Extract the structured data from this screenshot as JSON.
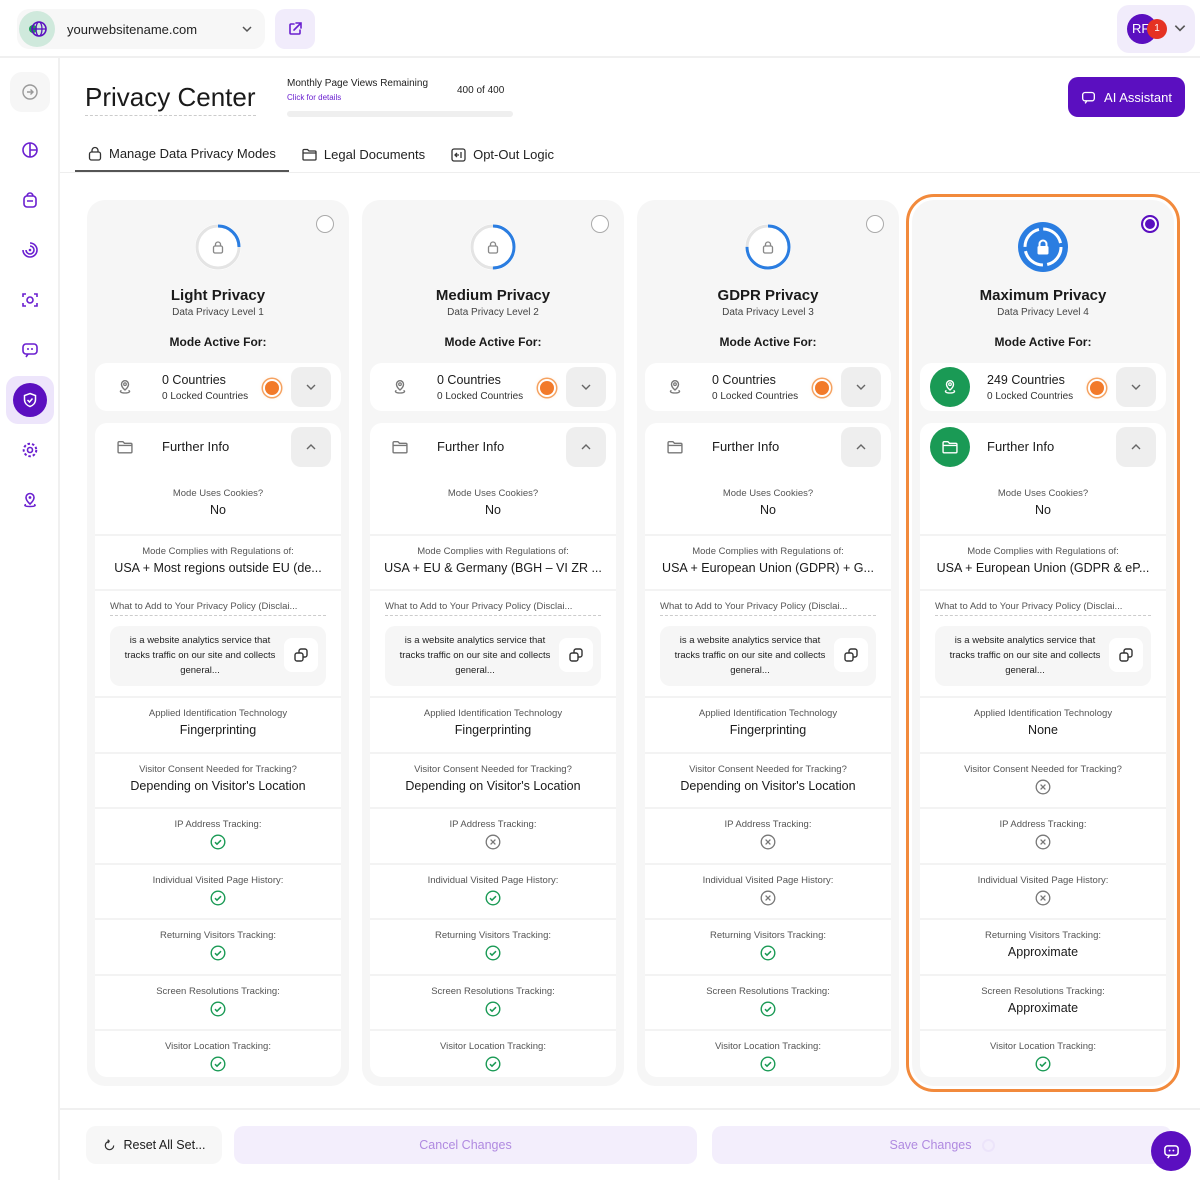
{
  "topbar": {
    "site": "yourwebsitename.com",
    "user_initials": "RF",
    "notifications": "1"
  },
  "header": {
    "title": "Privacy Center",
    "page_views_label": "Monthly Page Views Remaining",
    "page_views_link": "Click for details",
    "page_views_value": "400 of 400",
    "page_views_used_fraction": 0,
    "ai_button": "AI Assistant"
  },
  "tabs": [
    {
      "label": "Manage Data Privacy Modes",
      "icon": "lock-icon",
      "active": true
    },
    {
      "label": "Legal Documents",
      "icon": "folder-icon"
    },
    {
      "label": "Opt-Out Logic",
      "icon": "opt-out-icon"
    }
  ],
  "colors": {
    "accent": "#5b0fc0",
    "selected_outline": "#f28a3c",
    "green": "#1a9a55",
    "mode_icon": "#2a7de1"
  },
  "labels": {
    "mode_active_for": "Mode Active For:",
    "further_info": "Further Info",
    "cookies": "Mode Uses Cookies?",
    "regulations": "Mode Complies with Regulations of:",
    "policy": "What to Add to Your Privacy Policy (Disclai...",
    "policy_text": "is a website analytics service that tracks traffic on our site and collects general...",
    "technology": "Applied Identification Technology",
    "consent": "Visitor Consent Needed for Tracking?",
    "ip": "IP Address Tracking:",
    "history": "Individual Visited Page History:",
    "returning": "Returning Visitors Tracking:",
    "screen": "Screen Resolutions Tracking:",
    "location": "Visitor Location Tracking:"
  },
  "modes": [
    {
      "title": "Light Privacy",
      "level": "Data Privacy Level 1",
      "level_fraction": 0.25,
      "selected": false,
      "countries": "0 Countries",
      "locked": "0 Locked Countries",
      "cookies": "No",
      "regulations": "USA + Most regions outside EU (de...",
      "technology": "Fingerprinting",
      "consent": {
        "text": "Depending on Visitor's Location"
      },
      "ip": {
        "icon": "check"
      },
      "history": {
        "icon": "check"
      },
      "returning": {
        "icon": "check"
      },
      "screen": {
        "icon": "check"
      },
      "location": {
        "icon": "check"
      }
    },
    {
      "title": "Medium Privacy",
      "level": "Data Privacy Level 2",
      "level_fraction": 0.5,
      "selected": false,
      "countries": "0 Countries",
      "locked": "0 Locked Countries",
      "cookies": "No",
      "regulations": "USA + EU & Germany (BGH – VI ZR ...",
      "technology": "Fingerprinting",
      "consent": {
        "text": "Depending on Visitor's Location"
      },
      "ip": {
        "icon": "x"
      },
      "history": {
        "icon": "check"
      },
      "returning": {
        "icon": "check"
      },
      "screen": {
        "icon": "check"
      },
      "location": {
        "icon": "check"
      }
    },
    {
      "title": "GDPR Privacy",
      "level": "Data Privacy Level 3",
      "level_fraction": 0.75,
      "selected": false,
      "countries": "0 Countries",
      "locked": "0 Locked Countries",
      "cookies": "No",
      "regulations": "USA + European Union (GDPR) + G...",
      "technology": "Fingerprinting",
      "consent": {
        "text": "Depending on Visitor's Location"
      },
      "ip": {
        "icon": "x"
      },
      "history": {
        "icon": "x"
      },
      "returning": {
        "icon": "check"
      },
      "screen": {
        "icon": "check"
      },
      "location": {
        "icon": "check"
      }
    },
    {
      "title": "Maximum Privacy",
      "level": "Data Privacy Level 4",
      "level_fraction": 1,
      "selected": true,
      "countries": "249 Countries",
      "locked": "0 Locked Countries",
      "cookies": "No",
      "regulations": "USA + European Union (GDPR & eP...",
      "technology": "None",
      "consent": {
        "icon": "x"
      },
      "ip": {
        "icon": "x"
      },
      "history": {
        "icon": "x"
      },
      "returning": {
        "text": "Approximate"
      },
      "screen": {
        "text": "Approximate"
      },
      "location": {
        "icon": "check"
      }
    }
  ],
  "footer": {
    "reset": "Reset All Set...",
    "cancel": "Cancel Changes",
    "save": "Save Changes"
  }
}
